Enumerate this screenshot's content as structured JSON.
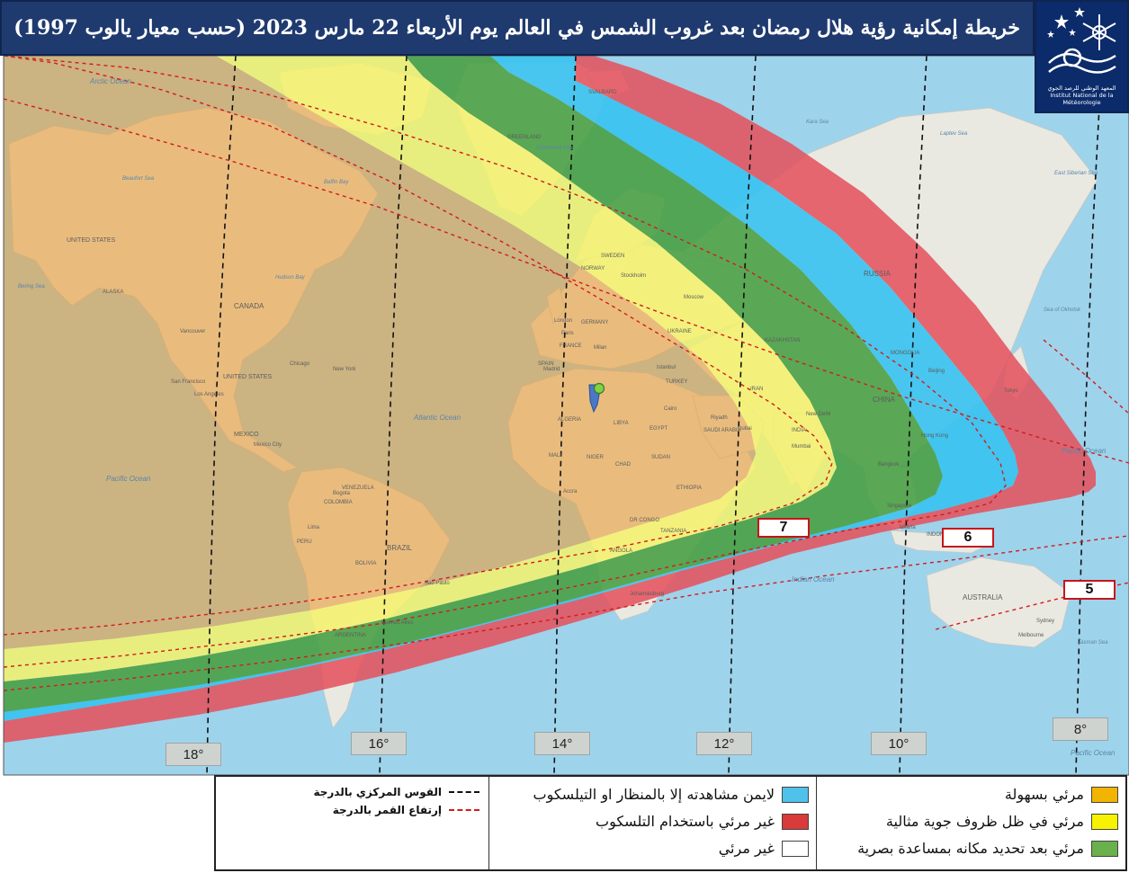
{
  "header": {
    "title": "خريطة إمكانية رؤية هلال رمضان  بعد غروب الشمس في العالم  يوم الأربعاء 22 مارس 2023  (حسب معيار يالوب 1997)"
  },
  "logo": {
    "org_arabic": "المعهد الوطني للرصد الجوي",
    "org_french": "Institut National de la Météorologie",
    "icon": "snowflake-stars-logo"
  },
  "colors": {
    "ocean": "#9ed3ec",
    "land": "#e9e9e2",
    "easy_visible": "#f0b060",
    "optimal_conditions": "#f4f26a",
    "optical_aid": "#6ab04c",
    "binoculars_telescope": "#39c2f0",
    "telescope_only": "#e4535e",
    "arc_line": "#111111",
    "altitude_line": "#d21c1c"
  },
  "longitude_labels": [
    "18°",
    "16°",
    "14°",
    "12°",
    "10°",
    "8°"
  ],
  "altitude_labels": [
    "7",
    "6",
    "5"
  ],
  "geo_labels": {
    "oceans": [
      "Arctic Ocean",
      "Atlantic Ocean",
      "Pacific Ocean",
      "Indian Ocean",
      "Pacific Ocean",
      "Pacific Ocean",
      "Bering Sea",
      "Beaufort Sea",
      "Kara Sea",
      "Laptev Sea",
      "East Siberian Sea",
      "Sea of Okhotsk",
      "Greenland Sea",
      "Hudson Bay",
      "Tasman Sea",
      "Baffin Bay"
    ],
    "countries": [
      "UNITED STATES",
      "CANADA",
      "UNITED STATES",
      "MEXICO",
      "COLOMBIA",
      "VENEZUELA",
      "PERU",
      "BRAZIL",
      "BOLIVIA",
      "ARGENTINA",
      "ALGERIA",
      "LIBYA",
      "EGYPT",
      "MALI",
      "NIGER",
      "CHAD",
      "SUDAN",
      "ETHIOPIA",
      "DR CONGO",
      "TANZANIA",
      "ANGOLA",
      "SAUDI ARABIA",
      "IRAN",
      "KAZAKHSTAN",
      "CHINA",
      "INDIA",
      "MONGOLIA",
      "RUSSIA",
      "SWEDEN",
      "NORWAY",
      "FRANCE",
      "GERMANY",
      "SPAIN",
      "TURKEY",
      "UKRAINE",
      "AUSTRALIA",
      "INDONESIA",
      "SVALBARD",
      "GREENLAND",
      "ALASKA"
    ],
    "cities": [
      "Vancouver",
      "San Francisco",
      "Los Angeles",
      "Chicago",
      "New York",
      "Mexico City",
      "Bogota",
      "Lima",
      "Sao Paulo",
      "Buenos Aires",
      "London",
      "Paris",
      "Madrid",
      "Milan",
      "Istanbul",
      "Moscow",
      "Stockholm",
      "Cairo",
      "Riyadh",
      "Dubai",
      "Mumbai",
      "New Delhi",
      "Bangkok",
      "Hong Kong",
      "Beijing",
      "Tokyo",
      "Singapore",
      "Jakarta",
      "Accra",
      "Johannesburg",
      "Sydney",
      "Melbourne"
    ]
  },
  "legend": {
    "arc_line_label": "القوس المركزي بالدرجة",
    "altitude_line_label": "إرتفاع القمر بالدرجة",
    "items": [
      {
        "label": "مرئي بسهولة",
        "color_key": "easy_visible"
      },
      {
        "label": "مرئي في ظل ظروف جوية مثالية",
        "color_key": "optimal_conditions"
      },
      {
        "label": "مرئي بعد تحديد مكانه بمساعدة بصرية",
        "color_key": "optical_aid"
      },
      {
        "label": "لايمن مشاهدته إلا بالمنظار او التيلسكوب",
        "color_key": "binoculars_telescope"
      },
      {
        "label": "غير مرئي باستخدام التلسكوب",
        "color_key": "telescope_only"
      },
      {
        "label": "غير مرئي",
        "color_key": "not_visible"
      }
    ]
  }
}
